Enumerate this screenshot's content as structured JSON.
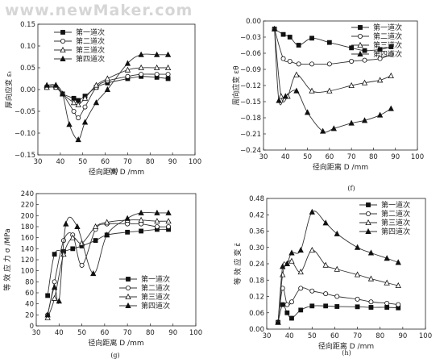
{
  "watermark": "www.newMaker.com",
  "legend_labels": [
    "第一道次",
    "第二道次",
    "第三道次",
    "第四道次"
  ],
  "chart_data": [
    {
      "id": "e",
      "panel_label": "(e)",
      "type": "line",
      "xlabel": "径向距离  D /mm",
      "ylabel": "厚向应变  εₜ",
      "xlim": [
        30,
        100
      ],
      "ylim": [
        -0.15,
        0.15
      ],
      "xticks": [
        30,
        40,
        50,
        60,
        70,
        80,
        90,
        100
      ],
      "yticks": [
        -0.15,
        -0.1,
        -0.05,
        0.0,
        0.05,
        0.1,
        0.15
      ],
      "ytick_labels": [
        "−0.15",
        "−0.10",
        "−0.05",
        "0.00",
        "0.05",
        "0.10",
        "0.15"
      ],
      "legend_position": "top-left",
      "series": [
        {
          "name": "第一道次",
          "marker": "square",
          "x": [
            34,
            38,
            41,
            46,
            48,
            51,
            56,
            61,
            70,
            76,
            83,
            88
          ],
          "y": [
            0.005,
            0.005,
            -0.01,
            -0.02,
            -0.025,
            -0.015,
            0.005,
            0.015,
            0.025,
            0.03,
            0.028,
            0.025
          ]
        },
        {
          "name": "第二道次",
          "marker": "circle",
          "x": [
            34,
            38,
            41,
            46,
            48,
            51,
            56,
            61,
            70,
            76,
            83,
            88
          ],
          "y": [
            0.005,
            0.005,
            -0.01,
            -0.05,
            -0.065,
            -0.04,
            0.005,
            0.02,
            0.03,
            0.035,
            0.035,
            0.035
          ]
        },
        {
          "name": "第三道次",
          "marker": "triangle-open",
          "x": [
            34,
            38,
            41,
            46,
            48,
            51,
            56,
            61,
            70,
            76,
            83,
            88
          ],
          "y": [
            0.005,
            0.01,
            -0.01,
            -0.03,
            -0.035,
            -0.02,
            0.01,
            0.025,
            0.045,
            0.05,
            0.05,
            0.05
          ]
        },
        {
          "name": "第四道次",
          "marker": "triangle-filled",
          "x": [
            34,
            38,
            41,
            44,
            48,
            51,
            56,
            61,
            70,
            76,
            83,
            88
          ],
          "y": [
            0.01,
            0.01,
            -0.01,
            -0.08,
            -0.115,
            -0.075,
            -0.03,
            0.0,
            0.06,
            0.08,
            0.08,
            0.08
          ]
        }
      ]
    },
    {
      "id": "f",
      "panel_label": "(f)",
      "type": "line",
      "xlabel": "径向距离  D /mm",
      "ylabel": "周向应变  εθ",
      "xlim": [
        30,
        100
      ],
      "ylim": [
        -0.24,
        0.0
      ],
      "xticks": [
        30,
        40,
        50,
        60,
        70,
        80,
        90,
        100
      ],
      "yticks": [
        0.0,
        -0.03,
        -0.06,
        -0.09,
        -0.12,
        -0.15,
        -0.18,
        -0.21,
        -0.24
      ],
      "ytick_labels": [
        "0.00",
        "−0.03",
        "−0.06",
        "−0.09",
        "−0.12",
        "−0.15",
        "−0.18",
        "−0.21",
        "−0.24"
      ],
      "legend_position": "top-right",
      "series": [
        {
          "name": "第一道次",
          "marker": "square",
          "x": [
            35,
            39,
            42,
            46,
            52,
            60,
            70,
            76,
            83,
            88
          ],
          "y": [
            -0.015,
            -0.025,
            -0.03,
            -0.045,
            -0.032,
            -0.04,
            -0.05,
            -0.055,
            -0.053,
            -0.048
          ]
        },
        {
          "name": "第二道次",
          "marker": "circle",
          "x": [
            35,
            39,
            42,
            46,
            52,
            60,
            70,
            76,
            83,
            88
          ],
          "y": [
            -0.015,
            -0.07,
            -0.075,
            -0.08,
            -0.08,
            -0.08,
            -0.075,
            -0.073,
            -0.07,
            -0.062
          ]
        },
        {
          "name": "第三道次",
          "marker": "triangle-open",
          "x": [
            35,
            38,
            41,
            45,
            52,
            60,
            70,
            76,
            83,
            88
          ],
          "y": [
            -0.015,
            -0.14,
            -0.14,
            -0.1,
            -0.13,
            -0.13,
            -0.12,
            -0.115,
            -0.11,
            -0.102
          ]
        },
        {
          "name": "第四道次",
          "marker": "triangle-filled",
          "x": [
            35,
            37,
            40,
            45,
            50,
            57,
            62,
            70,
            76,
            83,
            88
          ],
          "y": [
            -0.015,
            -0.148,
            -0.14,
            -0.13,
            -0.17,
            -0.205,
            -0.2,
            -0.19,
            -0.185,
            -0.175,
            -0.163
          ]
        }
      ]
    },
    {
      "id": "g",
      "panel_label": "(g)",
      "type": "line",
      "xlabel": "径向距离  D /mm",
      "ylabel": "等 效 应 力 σ /MPa",
      "xlim": [
        30,
        100
      ],
      "ylim": [
        0,
        240
      ],
      "xticks": [
        30,
        40,
        50,
        60,
        70,
        80,
        90,
        100
      ],
      "yticks": [
        0,
        20,
        40,
        60,
        80,
        100,
        120,
        140,
        160,
        180,
        200,
        220,
        240
      ],
      "ytick_labels": [
        "0",
        "20",
        "40",
        "60",
        "80",
        "100",
        "120",
        "140",
        "160",
        "180",
        "200",
        "220",
        "240"
      ],
      "legend_position": "bottom-right",
      "series": [
        {
          "name": "第一道次",
          "marker": "square",
          "x": [
            35,
            38,
            42,
            46,
            50,
            56,
            61,
            70,
            76,
            83,
            88
          ],
          "y": [
            55,
            130,
            135,
            140,
            145,
            155,
            165,
            170,
            172,
            175,
            175
          ]
        },
        {
          "name": "第二道次",
          "marker": "circle",
          "x": [
            35,
            38,
            42,
            46,
            50,
            56,
            61,
            70,
            76,
            83,
            88
          ],
          "y": [
            20,
            80,
            155,
            165,
            110,
            175,
            185,
            185,
            185,
            180,
            180
          ]
        },
        {
          "name": "第三道次",
          "marker": "triangle-open",
          "x": [
            35,
            38,
            42,
            46,
            50,
            56,
            61,
            70,
            76,
            83,
            88
          ],
          "y": [
            15,
            50,
            130,
            160,
            150,
            180,
            188,
            192,
            192,
            190,
            190
          ]
        },
        {
          "name": "第四道次",
          "marker": "triangle-filled",
          "x": [
            35,
            38,
            40,
            43,
            48,
            55,
            61,
            70,
            76,
            83,
            88
          ],
          "y": [
            20,
            70,
            45,
            185,
            180,
            95,
            165,
            195,
            205,
            205,
            205
          ]
        }
      ]
    },
    {
      "id": "h",
      "panel_label": "(h)",
      "type": "line",
      "xlabel": "径向距离  D /mm",
      "ylabel": "等 效 应 变  ε̄",
      "xlim": [
        30,
        100
      ],
      "ylim": [
        0.0,
        0.48
      ],
      "xticks": [
        30,
        40,
        50,
        60,
        70,
        80,
        90,
        100
      ],
      "yticks": [
        0.0,
        0.06,
        0.12,
        0.18,
        0.24,
        0.3,
        0.36,
        0.42,
        0.48
      ],
      "ytick_labels": [
        "0.00",
        "0.06",
        "0.12",
        "0.18",
        "0.24",
        "0.30",
        "0.36",
        "0.42",
        "0.48"
      ],
      "legend_position": "top-right",
      "series": [
        {
          "name": "第一道次",
          "marker": "square",
          "x": [
            35,
            37,
            39,
            41,
            45,
            50,
            56,
            61,
            70,
            76,
            83,
            88
          ],
          "y": [
            0.025,
            0.09,
            0.06,
            0.04,
            0.07,
            0.085,
            0.085,
            0.083,
            0.082,
            0.08,
            0.08,
            0.078
          ]
        },
        {
          "name": "第二道次",
          "marker": "circle",
          "x": [
            35,
            37,
            39,
            41,
            45,
            50,
            56,
            61,
            70,
            76,
            83,
            88
          ],
          "y": [
            0.025,
            0.15,
            0.09,
            0.1,
            0.15,
            0.14,
            0.13,
            0.12,
            0.11,
            0.1,
            0.095,
            0.09
          ]
        },
        {
          "name": "第三道次",
          "marker": "triangle-open",
          "x": [
            35,
            37,
            39,
            41,
            45,
            50,
            56,
            61,
            70,
            76,
            83,
            88
          ],
          "y": [
            0.025,
            0.2,
            0.24,
            0.25,
            0.21,
            0.29,
            0.235,
            0.22,
            0.2,
            0.185,
            0.17,
            0.16
          ]
        },
        {
          "name": "第四道次",
          "marker": "triangle-filled",
          "x": [
            35,
            37,
            39,
            41,
            45,
            50,
            56,
            61,
            70,
            76,
            83,
            88
          ],
          "y": [
            0.025,
            0.23,
            0.24,
            0.28,
            0.29,
            0.43,
            0.39,
            0.35,
            0.3,
            0.28,
            0.26,
            0.245
          ]
        }
      ]
    }
  ]
}
